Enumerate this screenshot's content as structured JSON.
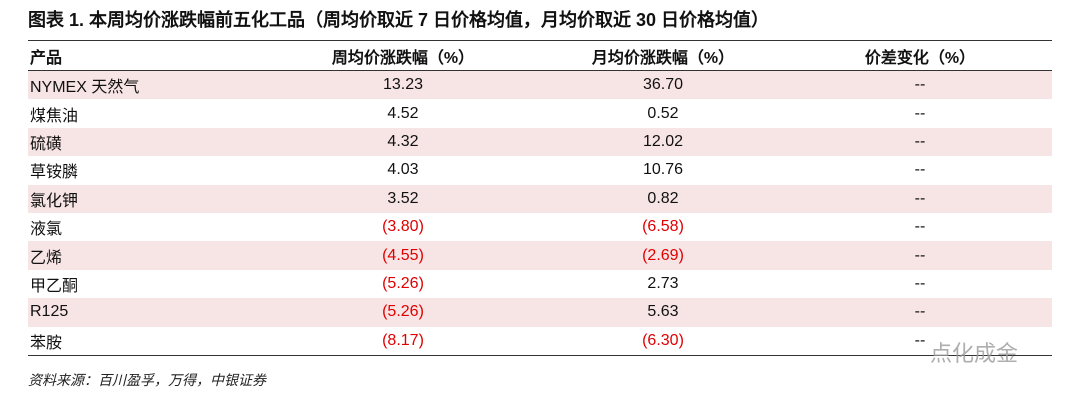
{
  "header": {
    "title": "图表 1. 本周均价涨跌幅前五化工品（周均价取近 7 日价格均值，月均价取近 30 日价格均值）"
  },
  "table": {
    "columns": [
      "产品",
      "周均价涨跌幅（%）",
      "月均价涨跌幅（%）",
      "价差变化（%）"
    ],
    "rows": [
      [
        "NYMEX 天然气",
        "13.23",
        "36.70",
        "--"
      ],
      [
        "煤焦油",
        "4.52",
        "0.52",
        "--"
      ],
      [
        "硫磺",
        "4.32",
        "12.02",
        "--"
      ],
      [
        "草铵膦",
        "4.03",
        "10.76",
        "--"
      ],
      [
        "氯化钾",
        "3.52",
        "0.82",
        "--"
      ],
      [
        "液氯",
        "(3.80)",
        "(6.58)",
        "--"
      ],
      [
        "乙烯",
        "(4.55)",
        "(2.69)",
        "--"
      ],
      [
        "甲乙酮",
        "(5.26)",
        "2.73",
        "--"
      ],
      [
        "R125",
        "(5.26)",
        "5.63",
        "--"
      ],
      [
        "苯胺",
        "(8.17)",
        "(6.30)",
        "--"
      ]
    ]
  },
  "footer": {
    "source": "资料来源：百川盈孚，万得，中银证券"
  },
  "watermark": "点化成金"
}
